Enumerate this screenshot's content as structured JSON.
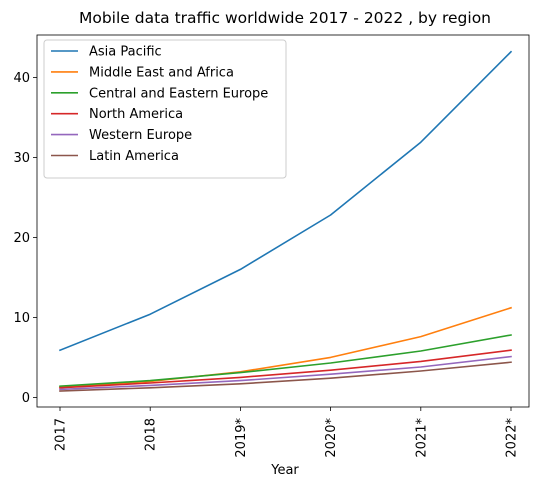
{
  "chart_data": {
    "type": "line",
    "title": "Mobile data traffic worldwide 2017 - 2022 , by region",
    "xlabel": "Year",
    "ylabel": "",
    "categories": [
      "2017",
      "2018",
      "2019*",
      "2020*",
      "2021*",
      "2022*"
    ],
    "ylim": [
      -1.2,
      45.3
    ],
    "yticks": [
      0,
      10,
      20,
      30,
      40
    ],
    "grid": false,
    "legend_position": "upper-left",
    "series": [
      {
        "name": "Asia Pacific",
        "color": "#1f77b4",
        "values": [
          5.9,
          10.4,
          16.0,
          22.8,
          31.9,
          43.2
        ]
      },
      {
        "name": "Middle East and Africa",
        "color": "#ff7f0e",
        "values": [
          1.3,
          2.0,
          3.2,
          5.0,
          7.6,
          11.2
        ]
      },
      {
        "name": "Central and Eastern Europe",
        "color": "#2ca02c",
        "values": [
          1.4,
          2.1,
          3.1,
          4.3,
          5.8,
          7.8
        ]
      },
      {
        "name": "North America",
        "color": "#d62728",
        "values": [
          1.2,
          1.8,
          2.5,
          3.4,
          4.5,
          5.9
        ]
      },
      {
        "name": "Western Europe",
        "color": "#9467bd",
        "values": [
          1.0,
          1.5,
          2.1,
          2.9,
          3.8,
          5.1
        ]
      },
      {
        "name": "Latin America",
        "color": "#8c564b",
        "values": [
          0.8,
          1.2,
          1.7,
          2.4,
          3.3,
          4.4
        ]
      }
    ]
  }
}
